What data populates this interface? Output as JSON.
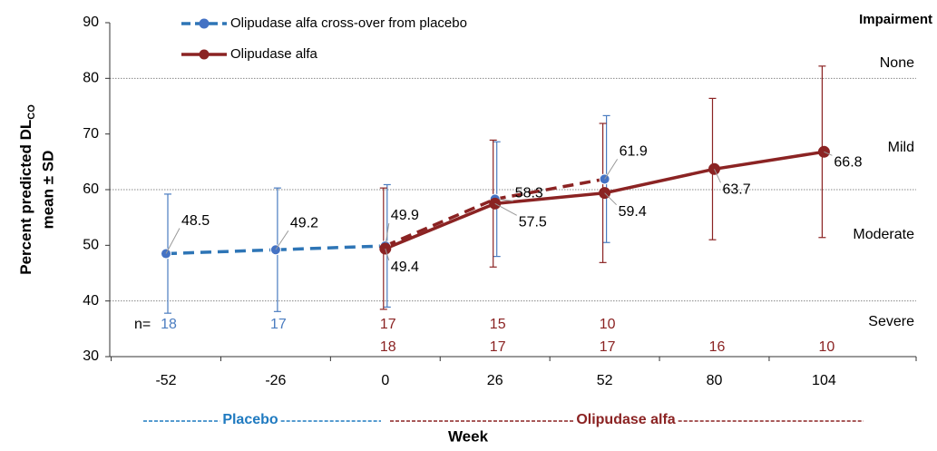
{
  "chart_data": {
    "type": "line",
    "ylabel": {
      "text": "Percent predicted DL",
      "subscript": "CO",
      "line2": "mean ± SD"
    },
    "xlabel": "Week",
    "categories": [
      "-52",
      "-26",
      "0",
      "26",
      "52",
      "80",
      "104"
    ],
    "ylim": [
      30,
      90
    ],
    "yticks": [
      30,
      40,
      50,
      60,
      70,
      80,
      90
    ],
    "reference_lines": [
      80,
      60,
      40
    ],
    "series": [
      {
        "name": "Olipudase alfa cross-over from placebo",
        "color": "#4472c4",
        "dashed": true,
        "segment_colors": [
          "#2e75b6",
          "#2e75b6",
          "#8b2323",
          "#8b2323"
        ],
        "values": [
          48.5,
          49.2,
          49.9,
          58.3,
          61.9,
          null,
          null
        ],
        "errors": [
          10.7,
          11.1,
          11.0,
          10.3,
          11.4,
          null,
          null
        ],
        "n": [
          18,
          17,
          17,
          15,
          10,
          null,
          null
        ],
        "n_colors": [
          "#4a7cc0",
          "#4a7cc0",
          "#8b2323",
          "#8b2323",
          "#8b2323",
          null,
          null
        ]
      },
      {
        "name": "Olipudase alfa",
        "color": "#8b2323",
        "dashed": false,
        "segment_colors": [
          "#8b2323",
          "#8b2323",
          "#8b2323",
          "#8b2323"
        ],
        "values": [
          null,
          null,
          49.4,
          57.5,
          59.4,
          63.7,
          66.8
        ],
        "errors": [
          null,
          null,
          10.9,
          11.4,
          12.5,
          12.7,
          15.4
        ],
        "n": [
          null,
          null,
          18,
          17,
          17,
          16,
          10
        ],
        "n_colors": [
          null,
          null,
          "#8b2323",
          "#8b2323",
          "#8b2323",
          "#8b2323",
          "#8b2323"
        ]
      }
    ],
    "n_label": "n=",
    "impairment": {
      "title": "Impairment",
      "levels": [
        "None",
        "Mild",
        "Moderate",
        "Severe"
      ]
    },
    "phases": [
      {
        "label": "Placebo",
        "color": "#1f7ac0"
      },
      {
        "label": "Olipudase alfa",
        "color": "#8b2323"
      }
    ]
  }
}
